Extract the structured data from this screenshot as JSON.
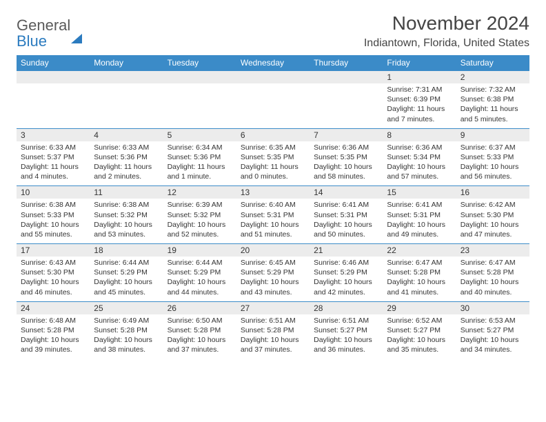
{
  "logo": {
    "line1": "General",
    "line2": "Blue"
  },
  "title": {
    "month": "November 2024",
    "location": "Indiantown, Florida, United States"
  },
  "colors": {
    "header_bg": "#3b8bc8",
    "header_text": "#ffffff",
    "daynum_bg": "#ececec",
    "border": "#3b8bc8",
    "text": "#333333",
    "logo_gray": "#5a5a5a",
    "logo_blue": "#2b7bbf",
    "page_bg": "#ffffff"
  },
  "typography": {
    "title_fontsize": 28,
    "location_fontsize": 16,
    "header_fontsize": 12,
    "daynum_fontsize": 12,
    "cell_fontsize": 10.5
  },
  "day_headers": [
    "Sunday",
    "Monday",
    "Tuesday",
    "Wednesday",
    "Thursday",
    "Friday",
    "Saturday"
  ],
  "weeks": [
    [
      null,
      null,
      null,
      null,
      null,
      {
        "n": "1",
        "sunrise": "7:31 AM",
        "sunset": "6:39 PM",
        "daylight": "11 hours and 7 minutes."
      },
      {
        "n": "2",
        "sunrise": "7:32 AM",
        "sunset": "6:38 PM",
        "daylight": "11 hours and 5 minutes."
      }
    ],
    [
      {
        "n": "3",
        "sunrise": "6:33 AM",
        "sunset": "5:37 PM",
        "daylight": "11 hours and 4 minutes."
      },
      {
        "n": "4",
        "sunrise": "6:33 AM",
        "sunset": "5:36 PM",
        "daylight": "11 hours and 2 minutes."
      },
      {
        "n": "5",
        "sunrise": "6:34 AM",
        "sunset": "5:36 PM",
        "daylight": "11 hours and 1 minute."
      },
      {
        "n": "6",
        "sunrise": "6:35 AM",
        "sunset": "5:35 PM",
        "daylight": "11 hours and 0 minutes."
      },
      {
        "n": "7",
        "sunrise": "6:36 AM",
        "sunset": "5:35 PM",
        "daylight": "10 hours and 58 minutes."
      },
      {
        "n": "8",
        "sunrise": "6:36 AM",
        "sunset": "5:34 PM",
        "daylight": "10 hours and 57 minutes."
      },
      {
        "n": "9",
        "sunrise": "6:37 AM",
        "sunset": "5:33 PM",
        "daylight": "10 hours and 56 minutes."
      }
    ],
    [
      {
        "n": "10",
        "sunrise": "6:38 AM",
        "sunset": "5:33 PM",
        "daylight": "10 hours and 55 minutes."
      },
      {
        "n": "11",
        "sunrise": "6:38 AM",
        "sunset": "5:32 PM",
        "daylight": "10 hours and 53 minutes."
      },
      {
        "n": "12",
        "sunrise": "6:39 AM",
        "sunset": "5:32 PM",
        "daylight": "10 hours and 52 minutes."
      },
      {
        "n": "13",
        "sunrise": "6:40 AM",
        "sunset": "5:31 PM",
        "daylight": "10 hours and 51 minutes."
      },
      {
        "n": "14",
        "sunrise": "6:41 AM",
        "sunset": "5:31 PM",
        "daylight": "10 hours and 50 minutes."
      },
      {
        "n": "15",
        "sunrise": "6:41 AM",
        "sunset": "5:31 PM",
        "daylight": "10 hours and 49 minutes."
      },
      {
        "n": "16",
        "sunrise": "6:42 AM",
        "sunset": "5:30 PM",
        "daylight": "10 hours and 47 minutes."
      }
    ],
    [
      {
        "n": "17",
        "sunrise": "6:43 AM",
        "sunset": "5:30 PM",
        "daylight": "10 hours and 46 minutes."
      },
      {
        "n": "18",
        "sunrise": "6:44 AM",
        "sunset": "5:29 PM",
        "daylight": "10 hours and 45 minutes."
      },
      {
        "n": "19",
        "sunrise": "6:44 AM",
        "sunset": "5:29 PM",
        "daylight": "10 hours and 44 minutes."
      },
      {
        "n": "20",
        "sunrise": "6:45 AM",
        "sunset": "5:29 PM",
        "daylight": "10 hours and 43 minutes."
      },
      {
        "n": "21",
        "sunrise": "6:46 AM",
        "sunset": "5:29 PM",
        "daylight": "10 hours and 42 minutes."
      },
      {
        "n": "22",
        "sunrise": "6:47 AM",
        "sunset": "5:28 PM",
        "daylight": "10 hours and 41 minutes."
      },
      {
        "n": "23",
        "sunrise": "6:47 AM",
        "sunset": "5:28 PM",
        "daylight": "10 hours and 40 minutes."
      }
    ],
    [
      {
        "n": "24",
        "sunrise": "6:48 AM",
        "sunset": "5:28 PM",
        "daylight": "10 hours and 39 minutes."
      },
      {
        "n": "25",
        "sunrise": "6:49 AM",
        "sunset": "5:28 PM",
        "daylight": "10 hours and 38 minutes."
      },
      {
        "n": "26",
        "sunrise": "6:50 AM",
        "sunset": "5:28 PM",
        "daylight": "10 hours and 37 minutes."
      },
      {
        "n": "27",
        "sunrise": "6:51 AM",
        "sunset": "5:28 PM",
        "daylight": "10 hours and 37 minutes."
      },
      {
        "n": "28",
        "sunrise": "6:51 AM",
        "sunset": "5:27 PM",
        "daylight": "10 hours and 36 minutes."
      },
      {
        "n": "29",
        "sunrise": "6:52 AM",
        "sunset": "5:27 PM",
        "daylight": "10 hours and 35 minutes."
      },
      {
        "n": "30",
        "sunrise": "6:53 AM",
        "sunset": "5:27 PM",
        "daylight": "10 hours and 34 minutes."
      }
    ]
  ],
  "labels": {
    "sunrise": "Sunrise:",
    "sunset": "Sunset:",
    "daylight": "Daylight:"
  }
}
